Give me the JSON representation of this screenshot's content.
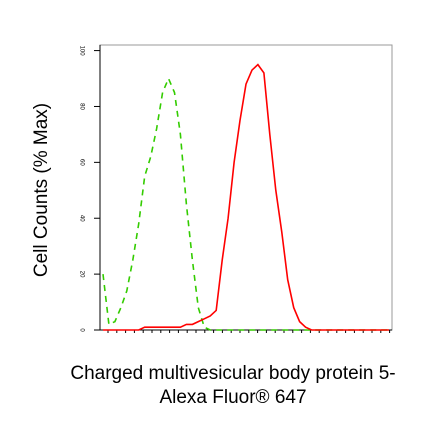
{
  "chart_data": {
    "type": "line",
    "y_label": "Cell Counts (% Max)",
    "x_label": [
      "Charged multivesicular body protein 5-",
      "Alexa Fluor® 647"
    ],
    "categories": [
      null,
      null,
      null,
      null,
      null,
      null,
      null,
      null,
      null,
      null,
      null,
      null,
      null,
      null,
      null,
      null,
      null,
      null,
      null,
      null,
      null,
      null,
      null,
      null,
      null,
      null,
      null,
      null,
      null,
      null,
      null,
      null,
      null,
      null,
      null,
      null,
      null,
      null,
      null,
      null,
      null,
      null,
      null,
      null,
      null,
      null,
      null,
      null,
      null
    ],
    "series": [
      {
        "color": "#33cc00",
        "dashed": true,
        "values": [
          20,
          2,
          3,
          8,
          14,
          25,
          38,
          55,
          62,
          72,
          85,
          90,
          85,
          70,
          45,
          25,
          8,
          1,
          0,
          0,
          0,
          0,
          0,
          0,
          0,
          0,
          0,
          0,
          0,
          0,
          0,
          0,
          0,
          0,
          0,
          0,
          0,
          0,
          0,
          0,
          0,
          0,
          0,
          0,
          0,
          0,
          0,
          0,
          0
        ]
      },
      {
        "color": "#ff0000",
        "dashed": false,
        "values": [
          0,
          0,
          0,
          0,
          0,
          0,
          0,
          1,
          1,
          1,
          1,
          1,
          1,
          1,
          2,
          2,
          3,
          4,
          5,
          7,
          25,
          40,
          60,
          75,
          88,
          93,
          95,
          92,
          70,
          50,
          35,
          18,
          8,
          3,
          1,
          0,
          0,
          0,
          0,
          0,
          0,
          0,
          0,
          0,
          0,
          0,
          0,
          0,
          0
        ]
      }
    ],
    "ylim": [
      0,
      102
    ],
    "yticks": [
      0,
      20,
      40,
      60,
      80,
      100
    ]
  }
}
